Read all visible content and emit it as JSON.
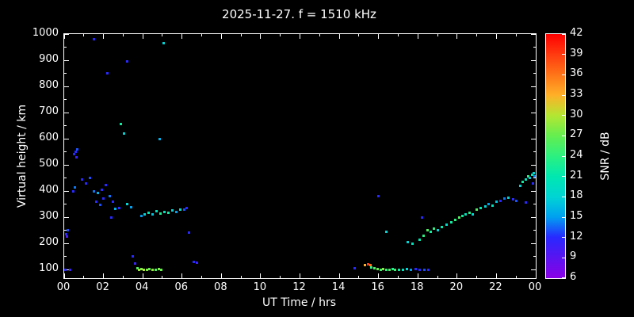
{
  "chart_data": {
    "type": "scatter",
    "title": "2025-11-27. f = 1510 kHz",
    "xlabel": "UT Time / hrs",
    "ylabel": "Virtual height / km",
    "colorbar_label": "SNR / dB",
    "xlim": [
      0,
      24
    ],
    "ylim": [
      67,
      1000
    ],
    "background": "#000000",
    "axis_color": "#ffffff",
    "grid": false,
    "xticks": {
      "values": [
        0,
        2,
        4,
        6,
        8,
        10,
        12,
        14,
        16,
        18,
        20,
        22,
        24
      ],
      "labels": [
        "00",
        "02",
        "04",
        "06",
        "08",
        "10",
        "12",
        "14",
        "16",
        "18",
        "20",
        "22",
        "00"
      ]
    },
    "yticks": {
      "values": [
        100,
        200,
        300,
        400,
        500,
        600,
        700,
        800,
        900,
        1000
      ],
      "labels": [
        "100",
        "200",
        "300",
        "400",
        "500",
        "600",
        "700",
        "800",
        "900",
        "1000"
      ]
    },
    "colorbar": {
      "min": 6,
      "max": 42,
      "ticks": [
        6,
        9,
        12,
        15,
        18,
        21,
        24,
        27,
        30,
        33,
        36,
        39,
        42
      ],
      "stops": [
        [
          6,
          "#8a00e6"
        ],
        [
          9,
          "#5a14f0"
        ],
        [
          12,
          "#2828ff"
        ],
        [
          15,
          "#00a0f0"
        ],
        [
          18,
          "#00d4d4"
        ],
        [
          21,
          "#00e8b0"
        ],
        [
          24,
          "#2cf080"
        ],
        [
          27,
          "#64ee50"
        ],
        [
          30,
          "#b4e632"
        ],
        [
          33,
          "#ffb028"
        ],
        [
          36,
          "#ff7518"
        ],
        [
          39,
          "#ff3a10"
        ],
        [
          42,
          "#ff0000"
        ]
      ]
    },
    "points": [
      [
        0.05,
        100,
        12
      ],
      [
        0.3,
        100,
        11
      ],
      [
        0.1,
        235,
        12
      ],
      [
        0.2,
        250,
        13
      ],
      [
        0.15,
        225,
        10
      ],
      [
        0.45,
        400,
        12
      ],
      [
        0.55,
        415,
        14
      ],
      [
        0.5,
        540,
        12
      ],
      [
        0.6,
        550,
        12
      ],
      [
        0.68,
        558,
        13
      ],
      [
        0.62,
        528,
        11
      ],
      [
        0.9,
        445,
        12
      ],
      [
        1.1,
        430,
        12
      ],
      [
        1.3,
        450,
        13
      ],
      [
        1.5,
        980,
        12
      ],
      [
        1.5,
        400,
        14
      ],
      [
        1.7,
        393,
        16
      ],
      [
        1.9,
        405,
        12
      ],
      [
        1.62,
        358,
        12
      ],
      [
        1.82,
        346,
        13
      ],
      [
        2.0,
        370,
        12
      ],
      [
        2.1,
        424,
        12
      ],
      [
        2.2,
        850,
        12
      ],
      [
        2.3,
        380,
        14
      ],
      [
        2.5,
        358,
        12
      ],
      [
        2.62,
        332,
        16
      ],
      [
        2.8,
        336,
        12
      ],
      [
        2.42,
        300,
        12
      ],
      [
        2.9,
        655,
        22
      ],
      [
        3.05,
        620,
        18
      ],
      [
        3.2,
        895,
        12
      ],
      [
        3.22,
        350,
        18
      ],
      [
        3.42,
        338,
        15
      ],
      [
        3.5,
        150,
        12
      ],
      [
        3.62,
        122,
        11
      ],
      [
        3.72,
        105,
        26
      ],
      [
        3.82,
        100,
        29
      ],
      [
        3.92,
        102,
        28
      ],
      [
        3.95,
        305,
        15
      ],
      [
        4.05,
        100,
        30
      ],
      [
        4.2,
        100,
        28
      ],
      [
        4.35,
        102,
        27
      ],
      [
        4.5,
        100,
        29
      ],
      [
        4.65,
        100,
        26
      ],
      [
        4.8,
        103,
        28
      ],
      [
        4.95,
        100,
        27
      ],
      [
        4.1,
        310,
        18
      ],
      [
        4.3,
        318,
        21
      ],
      [
        4.5,
        312,
        17
      ],
      [
        4.7,
        322,
        20
      ],
      [
        4.9,
        315,
        23
      ],
      [
        4.85,
        600,
        16
      ],
      [
        5.05,
        965,
        18
      ],
      [
        5.1,
        320,
        20
      ],
      [
        5.3,
        318,
        22
      ],
      [
        5.5,
        325,
        18
      ],
      [
        5.7,
        320,
        15
      ],
      [
        5.9,
        330,
        19
      ],
      [
        6.1,
        328,
        13
      ],
      [
        6.25,
        335,
        12
      ],
      [
        6.35,
        240,
        12
      ],
      [
        6.6,
        130,
        12
      ],
      [
        6.75,
        127,
        11
      ],
      [
        14.8,
        105,
        12
      ],
      [
        15.3,
        118,
        33
      ],
      [
        15.45,
        120,
        39
      ],
      [
        15.58,
        117,
        36
      ],
      [
        15.65,
        108,
        24
      ],
      [
        15.8,
        104,
        26
      ],
      [
        15.95,
        102,
        27
      ],
      [
        16.1,
        100,
        25
      ],
      [
        16.25,
        102,
        28
      ],
      [
        16.4,
        100,
        24
      ],
      [
        16.55,
        100,
        26
      ],
      [
        16.7,
        102,
        23
      ],
      [
        16.85,
        100,
        25
      ],
      [
        17.05,
        100,
        22
      ],
      [
        17.25,
        100,
        20
      ],
      [
        17.45,
        102,
        18
      ],
      [
        17.65,
        100,
        15
      ],
      [
        17.9,
        103,
        12
      ],
      [
        18.1,
        100,
        12
      ],
      [
        18.35,
        100,
        13
      ],
      [
        18.55,
        100,
        12
      ],
      [
        16.0,
        380,
        12
      ],
      [
        16.4,
        245,
        18
      ],
      [
        17.5,
        205,
        18
      ],
      [
        17.72,
        200,
        20
      ],
      [
        18.1,
        215,
        21
      ],
      [
        18.3,
        230,
        24
      ],
      [
        18.2,
        300,
        12
      ],
      [
        18.5,
        250,
        26
      ],
      [
        18.65,
        244,
        22
      ],
      [
        18.82,
        255,
        24
      ],
      [
        19.0,
        250,
        18
      ],
      [
        19.2,
        262,
        21
      ],
      [
        19.45,
        270,
        19
      ],
      [
        19.7,
        280,
        22
      ],
      [
        19.9,
        290,
        24
      ],
      [
        20.1,
        300,
        26
      ],
      [
        20.28,
        305,
        22
      ],
      [
        20.45,
        310,
        20
      ],
      [
        20.62,
        318,
        24
      ],
      [
        20.8,
        312,
        18
      ],
      [
        21.0,
        330,
        26
      ],
      [
        21.2,
        335,
        21
      ],
      [
        21.45,
        340,
        18
      ],
      [
        21.6,
        350,
        15
      ],
      [
        21.82,
        345,
        20
      ],
      [
        22.0,
        358,
        17
      ],
      [
        22.2,
        362,
        12
      ],
      [
        22.4,
        370,
        14
      ],
      [
        22.62,
        375,
        18
      ],
      [
        22.85,
        368,
        12
      ],
      [
        23.0,
        362,
        13
      ],
      [
        23.5,
        355,
        12
      ],
      [
        23.2,
        420,
        18
      ],
      [
        23.35,
        435,
        22
      ],
      [
        23.48,
        445,
        20
      ],
      [
        23.6,
        455,
        24
      ],
      [
        23.7,
        450,
        17
      ],
      [
        23.8,
        462,
        21
      ],
      [
        23.88,
        468,
        18
      ],
      [
        23.95,
        455,
        14
      ],
      [
        23.85,
        430,
        12
      ]
    ]
  }
}
